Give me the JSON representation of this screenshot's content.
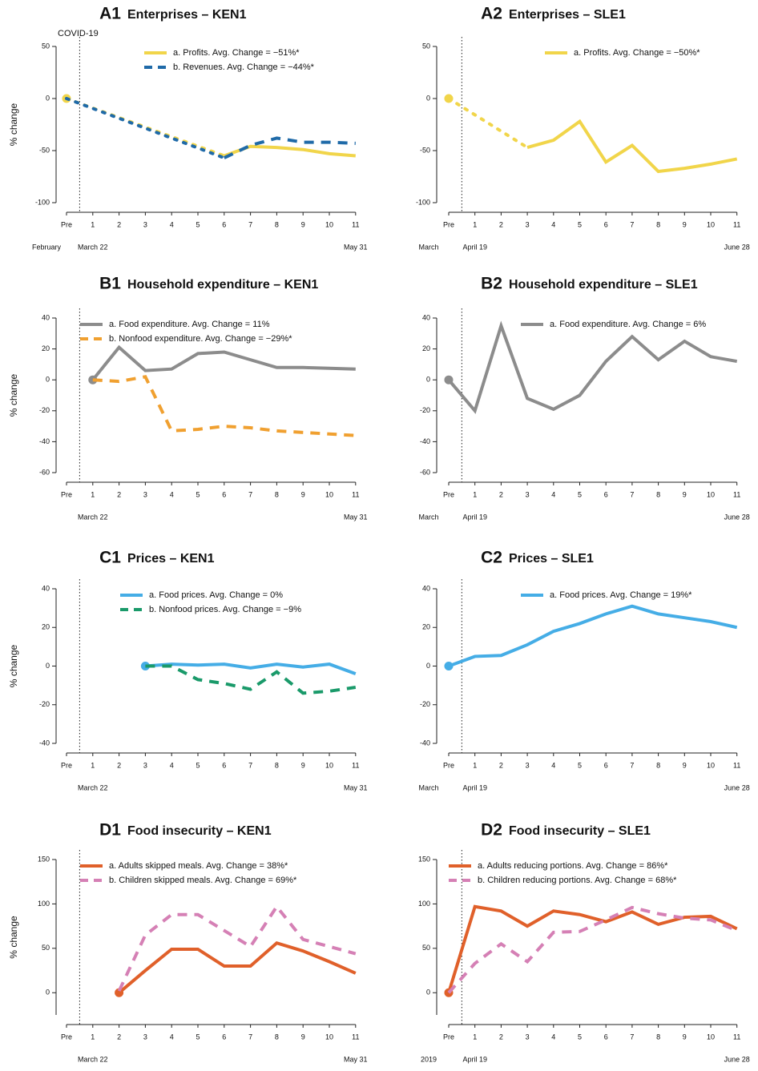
{
  "chart_data": [
    {
      "type": "line",
      "label": "A1",
      "title": "Enterprises – KEN1",
      "ylabel": "% change",
      "annotation": "COVID-19",
      "categories": [
        "Pre",
        "1",
        "2",
        "3",
        "4",
        "5",
        "6",
        "7",
        "8",
        "9",
        "10",
        "11"
      ],
      "date_labels": [
        "February",
        "March 22",
        "May 31"
      ],
      "ylim": [
        -100,
        50
      ],
      "yticks": [
        -100,
        -50,
        0,
        50
      ],
      "series": [
        {
          "name": "a. Profits. Avg. Change = −51%*",
          "color": "#f1d54a",
          "line_style": "solid",
          "values": [
            0,
            null,
            null,
            null,
            null,
            null,
            -55,
            -46,
            -47,
            -49,
            -53,
            -55
          ]
        },
        {
          "name": "b. Revenues. Avg. Change = −44%*",
          "color": "#1f6aa8",
          "line_style": "dashed",
          "values": [
            0,
            null,
            null,
            null,
            null,
            null,
            -57,
            -45,
            -38,
            -42,
            -42,
            -43
          ]
        }
      ]
    },
    {
      "type": "line",
      "label": "A2",
      "title": "Enterprises – SLE1",
      "categories": [
        "Pre",
        "1",
        "2",
        "3",
        "4",
        "5",
        "6",
        "7",
        "8",
        "9",
        "10",
        "11"
      ],
      "date_labels": [
        "March",
        "April 19",
        "June 28"
      ],
      "ylim": [
        -100,
        50
      ],
      "yticks": [
        -100,
        -50,
        0,
        50
      ],
      "series": [
        {
          "name": "a. Profits. Avg. Change = −50%*",
          "color": "#f1d54a",
          "line_style": "solid",
          "values": [
            0,
            null,
            null,
            -47,
            -40,
            -22,
            -61,
            -45,
            -70,
            -67,
            -63,
            -58
          ]
        }
      ]
    },
    {
      "type": "line",
      "label": "B1",
      "title": "Household expenditure – KEN1",
      "ylabel": "% change",
      "categories": [
        "Pre",
        "1",
        "2",
        "3",
        "4",
        "5",
        "6",
        "7",
        "8",
        "9",
        "10",
        "11"
      ],
      "date_labels": [
        "March 22",
        "May 31"
      ],
      "ylim": [
        -60,
        40
      ],
      "yticks": [
        -60,
        -40,
        -20,
        0,
        20,
        40
      ],
      "series": [
        {
          "name": "a. Food expenditure. Avg. Change = 11%",
          "color": "#8c8c8c",
          "line_style": "solid",
          "values": [
            null,
            0,
            21,
            6,
            7,
            17,
            18,
            13,
            8,
            8,
            7.5,
            7
          ]
        },
        {
          "name": "b. Nonfood expenditure. Avg. Change = −29%*",
          "color": "#f0a030",
          "line_style": "dashed",
          "values": [
            null,
            0,
            -1,
            2,
            -33,
            -32,
            -30,
            -31,
            -33,
            -34,
            -35,
            -36
          ]
        }
      ]
    },
    {
      "type": "line",
      "label": "B2",
      "title": "Household expenditure – SLE1",
      "categories": [
        "Pre",
        "1",
        "2",
        "3",
        "4",
        "5",
        "6",
        "7",
        "8",
        "9",
        "10",
        "11"
      ],
      "date_labels": [
        "March",
        "April 19",
        "June 28"
      ],
      "ylim": [
        -60,
        40
      ],
      "yticks": [
        -60,
        -40,
        -20,
        0,
        20,
        40
      ],
      "series": [
        {
          "name": "a. Food expenditure. Avg. Change = 6%",
          "color": "#8c8c8c",
          "line_style": "solid",
          "values": [
            0,
            -20,
            35,
            -12,
            -19,
            -10,
            12,
            28,
            13,
            25,
            15,
            12
          ]
        }
      ]
    },
    {
      "type": "line",
      "label": "C1",
      "title": "Prices – KEN1",
      "ylabel": "% change",
      "categories": [
        "Pre",
        "1",
        "2",
        "3",
        "4",
        "5",
        "6",
        "7",
        "8",
        "9",
        "10",
        "11"
      ],
      "date_labels": [
        "March 22",
        "May 31"
      ],
      "ylim": [
        -40,
        40
      ],
      "yticks": [
        -40,
        -20,
        0,
        20,
        40
      ],
      "series": [
        {
          "name": "a. Food prices. Avg. Change = 0%",
          "color": "#45ade6",
          "line_style": "solid",
          "values": [
            null,
            null,
            null,
            0,
            1,
            0.5,
            1,
            -1,
            1,
            -0.5,
            1,
            -4
          ]
        },
        {
          "name": "b. Nonfood prices. Avg. Change = −9%",
          "color": "#1a9a6a",
          "line_style": "dashed",
          "values": [
            null,
            null,
            null,
            0,
            0,
            -7,
            -9,
            -12,
            -3,
            -14,
            -13,
            -11
          ]
        }
      ]
    },
    {
      "type": "line",
      "label": "C2",
      "title": "Prices – SLE1",
      "categories": [
        "Pre",
        "1",
        "2",
        "3",
        "4",
        "5",
        "6",
        "7",
        "8",
        "9",
        "10",
        "11"
      ],
      "date_labels": [
        "March",
        "April 19",
        "June 28"
      ],
      "ylim": [
        -40,
        40
      ],
      "yticks": [
        -40,
        -20,
        0,
        20,
        40
      ],
      "series": [
        {
          "name": "a. Food prices. Avg. Change = 19%*",
          "color": "#45ade6",
          "line_style": "solid",
          "values": [
            0,
            5,
            5.5,
            11,
            18,
            22,
            27,
            31,
            27,
            25,
            23,
            20
          ]
        }
      ]
    },
    {
      "type": "line",
      "label": "D1",
      "title": "Food insecurity – KEN1",
      "ylabel": "% change",
      "categories": [
        "Pre",
        "1",
        "2",
        "3",
        "4",
        "5",
        "6",
        "7",
        "8",
        "9",
        "10",
        "11"
      ],
      "date_labels": [
        "March 22",
        "May 31"
      ],
      "ylim": [
        -25,
        150
      ],
      "yticks": [
        0,
        50,
        100,
        150
      ],
      "series": [
        {
          "name": "a. Adults skipped meals. Avg. Change = 38%*",
          "color": "#e0602a",
          "line_style": "solid",
          "values": [
            null,
            null,
            0,
            25,
            49,
            49,
            30,
            30,
            56,
            47,
            35,
            22
          ]
        },
        {
          "name": "b. Children skipped meals. Avg. Change = 69%*",
          "color": "#d580b5",
          "line_style": "dashed",
          "values": [
            null,
            null,
            2,
            65,
            88,
            88,
            70,
            52,
            97,
            60,
            52,
            44
          ]
        }
      ]
    },
    {
      "type": "line",
      "label": "D2",
      "title": "Food insecurity – SLE1",
      "categories": [
        "Pre",
        "1",
        "2",
        "3",
        "4",
        "5",
        "6",
        "7",
        "8",
        "9",
        "10",
        "11"
      ],
      "date_labels": [
        "2019",
        "April 19",
        "June 28"
      ],
      "ylim": [
        -25,
        150
      ],
      "yticks": [
        0,
        50,
        100,
        150
      ],
      "series": [
        {
          "name": "a. Adults reducing portions. Avg. Change = 86%*",
          "color": "#e0602a",
          "line_style": "solid",
          "values": [
            0,
            97,
            92,
            75,
            92,
            88,
            80,
            91,
            77,
            85,
            86,
            72
          ]
        },
        {
          "name": "b. Children reducing portions. Avg. Change = 68%*",
          "color": "#d580b5",
          "line_style": "dashed",
          "values": [
            0,
            33,
            55,
            35,
            68,
            69,
            82,
            96,
            89,
            84,
            82,
            70
          ]
        }
      ]
    }
  ]
}
